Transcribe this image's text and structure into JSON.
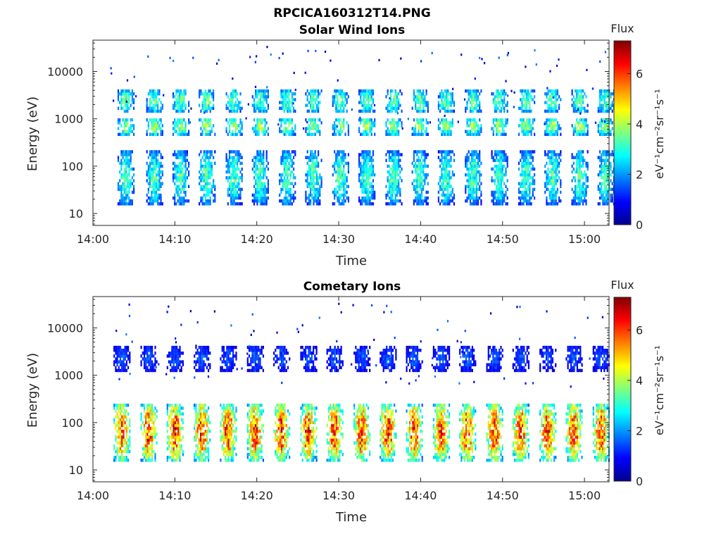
{
  "figure": {
    "title": "RPCICA160312T14.PNG"
  },
  "chart_data": [
    {
      "type": "heatmap",
      "title": "Solar Wind Ions",
      "xlabel": "Time",
      "ylabel": "Energy (eV)",
      "x_ticks": [
        "14:00",
        "14:10",
        "14:20",
        "14:30",
        "14:40",
        "14:50",
        "15:00"
      ],
      "x_range": [
        "14:00",
        "15:03"
      ],
      "y_ticks": [
        "10",
        "100",
        "1000",
        "10000"
      ],
      "y_range": [
        5.6,
        46000
      ],
      "y_scale": "log",
      "colorbar": {
        "title": "Flux",
        "label": "eV⁻¹cm⁻²sr⁻¹s⁻¹",
        "ticks": [
          "0",
          "2",
          "4",
          "6"
        ],
        "range": [
          0,
          7.3
        ],
        "colormap": "jet"
      },
      "grid": false,
      "pulse_start_minutes": [
        3.0,
        6.5,
        9.7,
        12.9,
        16.2,
        19.4,
        22.7,
        25.9,
        29.2,
        32.4,
        35.7,
        38.9,
        42.1,
        45.4,
        48.6,
        51.9,
        55.1,
        58.4,
        61.6
      ],
      "bands": [
        {
          "energy_range_eV": [
            16,
            220
          ],
          "peak_flux": 3.2
        },
        {
          "energy_range_eV": [
            450,
            1100
          ],
          "peak_flux": 3.8
        },
        {
          "energy_range_eV": [
            1300,
            4500
          ],
          "peak_flux": 3.4
        }
      ]
    },
    {
      "type": "heatmap",
      "title": "Cometary Ions",
      "xlabel": "Time",
      "ylabel": "Energy (eV)",
      "x_ticks": [
        "14:00",
        "14:10",
        "14:20",
        "14:30",
        "14:40",
        "14:50",
        "15:00"
      ],
      "x_range": [
        "14:00",
        "15:03"
      ],
      "y_ticks": [
        "10",
        "100",
        "1000",
        "10000"
      ],
      "y_range": [
        5.6,
        46000
      ],
      "y_scale": "log",
      "colorbar": {
        "title": "Flux",
        "label": "eV⁻¹cm⁻²sr⁻¹s⁻¹",
        "ticks": [
          "0",
          "2",
          "4",
          "6"
        ],
        "range": [
          0,
          7.3
        ],
        "colormap": "jet"
      },
      "grid": false,
      "pulse_start_minutes": [
        2.5,
        5.8,
        9.0,
        12.3,
        15.5,
        18.8,
        22.0,
        25.3,
        28.5,
        31.8,
        35.0,
        38.2,
        41.5,
        44.7,
        48.0,
        51.2,
        54.5,
        57.7,
        61.0
      ],
      "bands": [
        {
          "energy_range_eV": [
            16,
            260
          ],
          "peak_flux": 5.9
        },
        {
          "energy_range_eV": [
            1200,
            4500
          ],
          "peak_flux": 1.5
        }
      ]
    }
  ]
}
